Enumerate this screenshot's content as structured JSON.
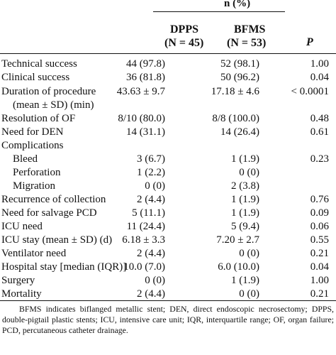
{
  "header": {
    "group": "n (%)",
    "col1": {
      "name": "DPPS",
      "count": "(N = 45)"
    },
    "col2": {
      "name": "BFMS",
      "count": "(N = 53)"
    },
    "col3": "P"
  },
  "rows": [
    {
      "label": "Technical success",
      "dpps": "44 (97.8)",
      "bfms": "52 (98.1)",
      "p": "1.00"
    },
    {
      "label": "Clinical success",
      "dpps": "36 (81.8)",
      "bfms": "50 (96.2)",
      "p": "0.04"
    },
    {
      "label": "Duration of procedure",
      "dpps": "43.63 ± 9.7",
      "bfms": "17.18 ± 4.6",
      "p": "< 0.0001"
    },
    {
      "label": "(mean ± SD) (min)",
      "dpps": "",
      "bfms": "",
      "p": ""
    },
    {
      "label": "Resolution of OF",
      "dpps": "8/10 (80.0)",
      "bfms": "8/8 (100.0)",
      "p": "0.48"
    },
    {
      "label": "Need for DEN",
      "dpps": "14 (31.1)",
      "bfms": "14 (26.4)",
      "p": "0.61"
    },
    {
      "label": "Complications",
      "dpps": "",
      "bfms": "",
      "p": ""
    },
    {
      "label": "Bleed",
      "dpps": "3 (6.7)",
      "bfms": "1 (1.9)",
      "p": "0.23"
    },
    {
      "label": "Perforation",
      "dpps": "1 (2.2)",
      "bfms": "0 (0)",
      "p": ""
    },
    {
      "label": "Migration",
      "dpps": "0 (0)",
      "bfms": "2 (3.8)",
      "p": ""
    },
    {
      "label": "Recurrence of collection",
      "dpps": "2 (4.4)",
      "bfms": "1 (1.9)",
      "p": "0.76"
    },
    {
      "label": "Need for salvage PCD",
      "dpps": "5 (11.1)",
      "bfms": "1 (1.9)",
      "p": "0.09"
    },
    {
      "label": "ICU need",
      "dpps": "11 (24.4)",
      "bfms": "5 (9.4)",
      "p": "0.06"
    },
    {
      "label": "ICU stay (mean ± SD) (d)",
      "dpps": "6.18 ± 3.3",
      "bfms": "7.20 ± 2.7",
      "p": "0.55"
    },
    {
      "label": "Ventilator need",
      "dpps": "2 (4.4)",
      "bfms": "0 (0)",
      "p": "0.21"
    },
    {
      "label": "Hospital stay [median (IQR)]",
      "dpps": "10.0 (7.0)",
      "bfms": "6.0 (10.0)",
      "p": "0.04"
    },
    {
      "label": "Surgery",
      "dpps": "0 (0)",
      "bfms": "1 (1.9)",
      "p": "1.00"
    },
    {
      "label": "Mortality",
      "dpps": "2 (4.4)",
      "bfms": "0 (0)",
      "p": "0.21"
    }
  ],
  "footnote": "BFMS indicates biflanged metallic stent; DEN, direct endoscopic necrosectomy; DPPS, double-pigtail plastic stents; ICU, intensive care unit; IQR, interquartile range; OF, organ failure; PCD, percutaneous catheter drainage."
}
